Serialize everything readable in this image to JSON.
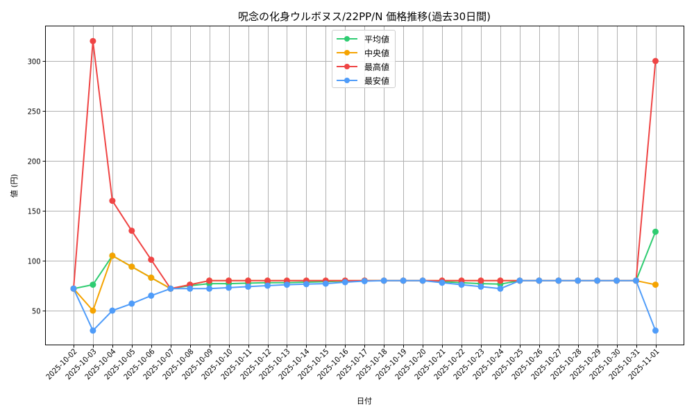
{
  "chart_data": {
    "type": "line",
    "title": "呪念の化身ウルボヌス/22PP/N 価格推移(過去30日間)",
    "xlabel": "日付",
    "ylabel": "値 (円)",
    "ylim": [
      15,
      335
    ],
    "yticks": [
      50,
      100,
      150,
      200,
      250,
      300
    ],
    "grid": true,
    "legend_position": "upper center",
    "x": [
      "2025-10-02",
      "2025-10-03",
      "2025-10-04",
      "2025-10-05",
      "2025-10-06",
      "2025-10-07",
      "2025-10-08",
      "2025-10-09",
      "2025-10-10",
      "2025-10-11",
      "2025-10-12",
      "2025-10-13",
      "2025-10-14",
      "2025-10-15",
      "2025-10-16",
      "2025-10-17",
      "2025-10-18",
      "2025-10-19",
      "2025-10-20",
      "2025-10-21",
      "2025-10-22",
      "2025-10-23",
      "2025-10-24",
      "2025-10-25",
      "2025-10-26",
      "2025-10-27",
      "2025-10-28",
      "2025-10-29",
      "2025-10-30",
      "2025-10-31",
      "2025-11-01"
    ],
    "series": [
      {
        "name": "平均値",
        "color": "#2ecc71",
        "values": [
          72,
          76,
          105,
          94,
          83,
          72,
          75,
          77,
          77,
          77.5,
          78,
          78,
          78.5,
          79,
          79.5,
          80,
          80,
          80,
          80,
          79,
          78,
          77,
          76.5,
          80,
          80,
          80,
          80,
          80,
          80,
          80,
          129
        ]
      },
      {
        "name": "中央値",
        "color": "#f5a300",
        "values": [
          72,
          50,
          105,
          94,
          83,
          72,
          76,
          80,
          80,
          80,
          80,
          80,
          80,
          80,
          80,
          80,
          80,
          80,
          80,
          80,
          80,
          80,
          80,
          80,
          80,
          80,
          80,
          80,
          80,
          80,
          76
        ]
      },
      {
        "name": "最高値",
        "color": "#ef4444",
        "values": [
          72,
          320,
          160,
          130,
          101,
          72,
          76,
          80,
          80,
          80,
          80,
          80,
          80,
          80,
          80,
          80,
          80,
          80,
          80,
          80,
          80,
          80,
          80,
          80,
          80,
          80,
          80,
          80,
          80,
          80,
          300
        ]
      },
      {
        "name": "最安値",
        "color": "#4f9cf9",
        "values": [
          72,
          30,
          50,
          57,
          65,
          72,
          72,
          72,
          73,
          74,
          75,
          76,
          76.5,
          77,
          78.5,
          79.5,
          80,
          80,
          80,
          78,
          76,
          74,
          72,
          80,
          80,
          80,
          80,
          80,
          80,
          80,
          30
        ]
      }
    ]
  },
  "legend": {
    "items": [
      {
        "label": "平均値",
        "color": "#2ecc71"
      },
      {
        "label": "中央値",
        "color": "#f5a300"
      },
      {
        "label": "最高値",
        "color": "#ef4444"
      },
      {
        "label": "最安値",
        "color": "#4f9cf9"
      }
    ]
  }
}
